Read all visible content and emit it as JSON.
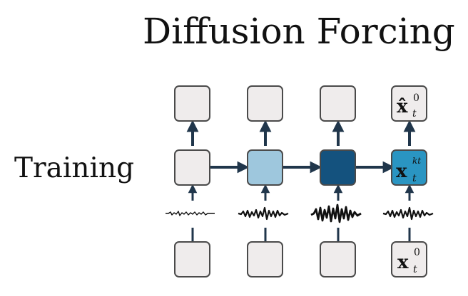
{
  "title": "Diffusion Forcing",
  "row_label": "Training",
  "colors": {
    "box_default": "#efecec",
    "box_light_blue": "#9ec7dd",
    "box_dark_blue": "#14527e",
    "box_blue": "#2a95c2",
    "box_border": "#4a4a4a",
    "arrow": "#20364b",
    "noise": "#111111"
  },
  "columns": [
    {
      "output_box": {
        "label": ""
      },
      "hidden_box": {
        "label": "",
        "fill": "box_default"
      },
      "noise_level": "low",
      "input_box": {
        "label": ""
      }
    },
    {
      "output_box": {
        "label": ""
      },
      "hidden_box": {
        "label": "",
        "fill": "box_light_blue"
      },
      "noise_level": "medium",
      "input_box": {
        "label": ""
      }
    },
    {
      "output_box": {
        "label": ""
      },
      "hidden_box": {
        "label": "",
        "fill": "box_dark_blue"
      },
      "noise_level": "high",
      "input_box": {
        "label": ""
      }
    },
    {
      "output_box": {
        "label": "x̂",
        "superscript": "0",
        "subscript": "t"
      },
      "hidden_box": {
        "label": "x",
        "superscript": "kt",
        "subscript": "t",
        "fill": "box_blue"
      },
      "noise_level": "medium",
      "input_box": {
        "label": "x",
        "superscript": "0",
        "subscript": "t"
      }
    }
  ]
}
